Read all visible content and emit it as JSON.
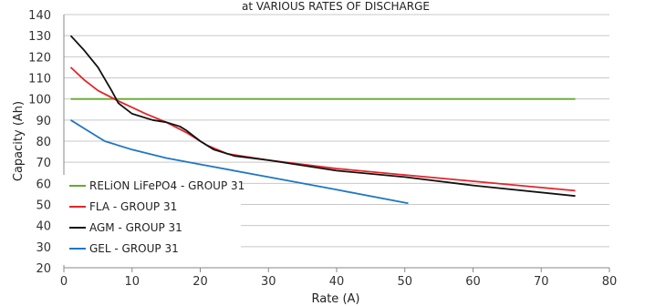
{
  "chart_data": {
    "type": "line",
    "title": "at VARIOUS RATES OF DISCHARGE",
    "xlabel": "Rate (A)",
    "ylabel": "Capacity (Ah)",
    "xlim": [
      0,
      80
    ],
    "ylim": [
      20,
      140
    ],
    "xticks": [
      0,
      10,
      20,
      30,
      40,
      50,
      60,
      70,
      80
    ],
    "yticks": [
      20,
      30,
      40,
      50,
      60,
      70,
      80,
      90,
      100,
      110,
      120,
      130,
      140
    ],
    "grid": "horizontal",
    "legend_position": "bottom-left",
    "series": [
      {
        "name": "RELiON LiFePO4 - GROUP 31",
        "color": "#66a832",
        "points": [
          [
            1,
            100
          ],
          [
            75,
            100
          ]
        ]
      },
      {
        "name": "FLA - GROUP 31",
        "color": "#e3252b",
        "points": [
          [
            1,
            115
          ],
          [
            3,
            109
          ],
          [
            5,
            104
          ],
          [
            8,
            99
          ],
          [
            10,
            96
          ],
          [
            12,
            93
          ],
          [
            15,
            89
          ],
          [
            18,
            84
          ],
          [
            21,
            78
          ],
          [
            24,
            74
          ],
          [
            30,
            71
          ],
          [
            40,
            67
          ],
          [
            50,
            64
          ],
          [
            60,
            61
          ],
          [
            75,
            56.5
          ]
        ]
      },
      {
        "name": "AGM - GROUP 31",
        "color": "#111111",
        "points": [
          [
            1,
            130
          ],
          [
            3,
            123
          ],
          [
            5,
            115
          ],
          [
            7,
            104
          ],
          [
            8,
            98
          ],
          [
            10,
            93
          ],
          [
            13,
            90
          ],
          [
            15,
            89
          ],
          [
            17,
            87
          ],
          [
            18,
            85
          ],
          [
            20,
            80
          ],
          [
            22,
            76
          ],
          [
            25,
            73
          ],
          [
            30,
            71
          ],
          [
            40,
            66
          ],
          [
            50,
            63
          ],
          [
            60,
            59
          ],
          [
            75,
            54
          ]
        ]
      },
      {
        "name": "GEL - GROUP 31",
        "color": "#1f77c2",
        "points": [
          [
            1,
            90
          ],
          [
            3,
            86
          ],
          [
            6,
            80
          ],
          [
            10,
            76
          ],
          [
            15,
            72
          ],
          [
            20,
            69
          ],
          [
            30,
            63
          ],
          [
            40,
            57
          ],
          [
            50.5,
            50.5
          ]
        ]
      }
    ]
  }
}
